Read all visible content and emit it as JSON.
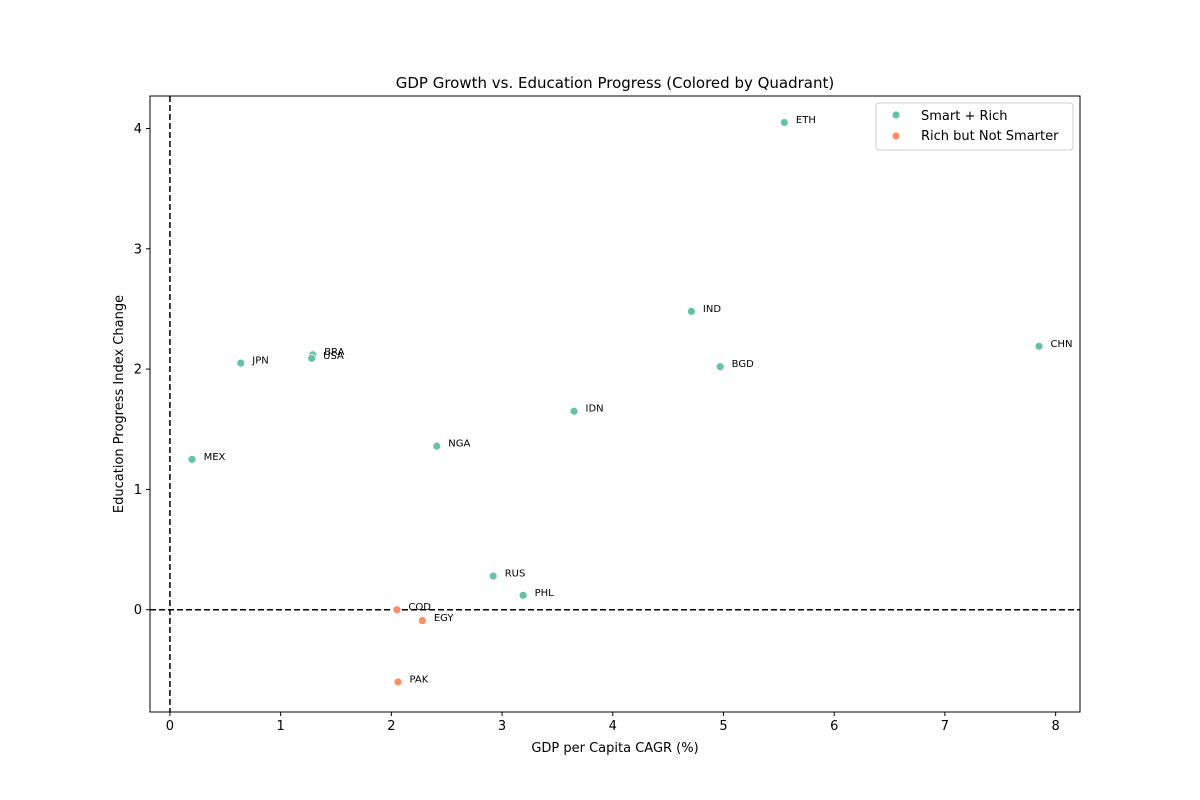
{
  "chart_data": {
    "type": "scatter",
    "title": "GDP Growth vs. Education Progress (Colored by Quadrant)",
    "xlabel": "GDP per Capita CAGR (%)",
    "ylabel": "Education Progress Index Change",
    "xlim": [
      -0.18,
      8.22
    ],
    "ylim": [
      -0.85,
      4.27
    ],
    "xticks": [
      0,
      1,
      2,
      3,
      4,
      5,
      6,
      7,
      8
    ],
    "yticks": [
      0,
      1,
      2,
      3,
      4
    ],
    "reference_lines": {
      "x": 0,
      "y": 0,
      "style": "dashed"
    },
    "legend_position": "top-right",
    "grid": false,
    "series": [
      {
        "name": "Smart + Rich",
        "color": "#66c2a5",
        "points": [
          {
            "label": "ETH",
            "x": 5.55,
            "y": 4.05
          },
          {
            "label": "IND",
            "x": 4.71,
            "y": 2.48
          },
          {
            "label": "CHN",
            "x": 7.85,
            "y": 2.19
          },
          {
            "label": "BRA",
            "x": 1.29,
            "y": 2.12
          },
          {
            "label": "USA",
            "x": 1.28,
            "y": 2.09
          },
          {
            "label": "JPN",
            "x": 0.64,
            "y": 2.05
          },
          {
            "label": "BGD",
            "x": 4.97,
            "y": 2.02
          },
          {
            "label": "IDN",
            "x": 3.65,
            "y": 1.65
          },
          {
            "label": "NGA",
            "x": 2.41,
            "y": 1.36
          },
          {
            "label": "MEX",
            "x": 0.2,
            "y": 1.25
          },
          {
            "label": "RUS",
            "x": 2.92,
            "y": 0.28
          },
          {
            "label": "PHL",
            "x": 3.19,
            "y": 0.12
          }
        ]
      },
      {
        "name": "Rich but Not Smarter",
        "color": "#fc8d62",
        "points": [
          {
            "label": "COD",
            "x": 2.05,
            "y": 0.0
          },
          {
            "label": "EGY",
            "x": 2.28,
            "y": -0.09
          },
          {
            "label": "PAK",
            "x": 2.06,
            "y": -0.6
          }
        ]
      }
    ]
  }
}
